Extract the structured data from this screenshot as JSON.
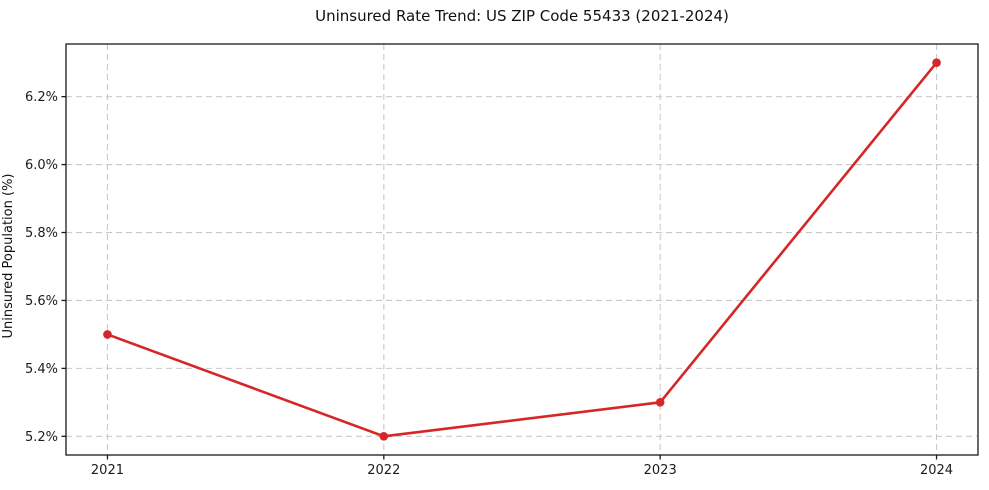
{
  "chart_data": {
    "type": "line",
    "title": "Uninsured Rate Trend: US ZIP Code 55433 (2021-2024)",
    "xlabel": "",
    "ylabel": "Uninsured Population (%)",
    "x": [
      2021,
      2022,
      2023,
      2024
    ],
    "values": [
      5.5,
      5.2,
      5.3,
      6.3
    ],
    "xlim": [
      2020.85,
      2024.15
    ],
    "ylim": [
      5.145,
      6.355
    ],
    "xticks": [
      2021,
      2022,
      2023,
      2024
    ],
    "xtick_labels": [
      "2021",
      "2022",
      "2023",
      "2024"
    ],
    "yticks": [
      5.2,
      5.4,
      5.6,
      5.8,
      6.0,
      6.2
    ],
    "ytick_labels": [
      "5.2%",
      "5.4%",
      "5.6%",
      "5.8%",
      "6.0%",
      "6.2%"
    ],
    "grid": true,
    "legend_position": "none",
    "line_color": "#d62728",
    "marker": "o",
    "grid_color": "#c9c9c9",
    "spine_color": "#1a1a1a",
    "tick_label_color": "#1c1c1c",
    "background_color": "#ffffff"
  }
}
